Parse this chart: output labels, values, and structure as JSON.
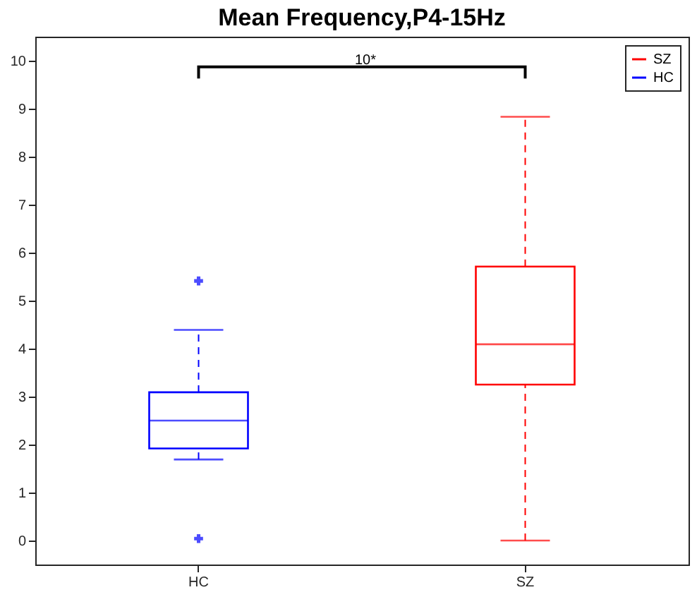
{
  "chart_data": {
    "type": "box",
    "title": "Mean Frequency,P4-15Hz",
    "categories": [
      "HC",
      "SZ"
    ],
    "series": [
      {
        "name": "SZ",
        "color": "#ff0000",
        "boxes": [
          null,
          {
            "low": 0,
            "q1": 3.25,
            "median": 4.09,
            "q3": 5.71,
            "high": 8.83
          }
        ]
      },
      {
        "name": "HC",
        "color": "#0000ff",
        "boxes": [
          {
            "low": 1.69,
            "q1": 1.92,
            "median": 2.5,
            "q3": 3.09,
            "high": 4.39,
            "outliers": [
              5.41,
              0.04
            ]
          },
          null
        ]
      }
    ],
    "ylim": [
      -0.5,
      10.5
    ],
    "yticks": [
      0,
      1,
      2,
      3,
      4,
      5,
      6,
      7,
      8,
      9,
      10
    ],
    "grid": false,
    "legend": "top right",
    "annotations": [
      "10*"
    ]
  }
}
